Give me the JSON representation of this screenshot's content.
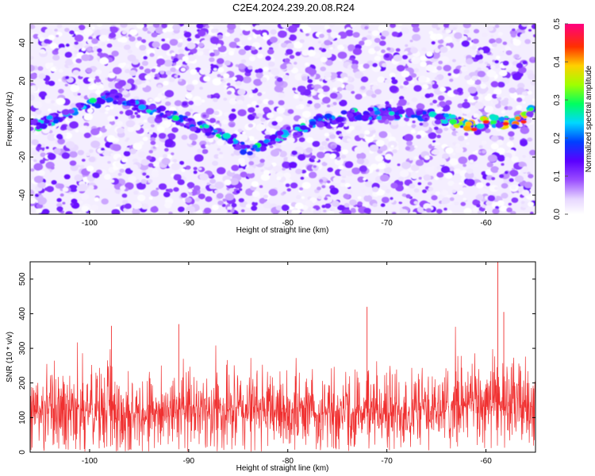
{
  "title": "C2E4.2024.239.20.08.R24",
  "colors": {
    "snr_line": "#f03030",
    "background": "#ffffff",
    "axis": "#000000"
  },
  "chart_data": [
    {
      "type": "heatmap",
      "name": "spectrogram",
      "xlabel": "Height of straight line (km)",
      "ylabel": "Frequency (Hz)",
      "xlim": [
        -106.0,
        -55.0
      ],
      "ylim": [
        -50,
        50
      ],
      "x_ticks": [
        -100,
        -90,
        -80,
        -70,
        -60
      ],
      "y_ticks": [
        -40,
        -20,
        0,
        20,
        40
      ],
      "grid": false,
      "colorbar": {
        "label": "Normalized spectral amplitude",
        "range": [
          0.0,
          0.5
        ],
        "ticks": [
          0.0,
          0.1,
          0.2,
          0.3,
          0.4,
          0.5
        ],
        "colormap": "white-purple-blue-cyan-green-yellow-red-magenta"
      },
      "ridge": {
        "description_points": [
          {
            "x": -105,
            "y": -3
          },
          {
            "x": -98,
            "y": 12
          },
          {
            "x": -95,
            "y": 7
          },
          {
            "x": -92,
            "y": 2
          },
          {
            "x": -88,
            "y": -6
          },
          {
            "x": -86,
            "y": -10
          },
          {
            "x": -84,
            "y": -17
          },
          {
            "x": -82,
            "y": -12
          },
          {
            "x": -79,
            "y": -6
          },
          {
            "x": -77,
            "y": -1
          },
          {
            "x": -74,
            "y": 2
          },
          {
            "x": -70,
            "y": 3
          },
          {
            "x": -67,
            "y": 3
          },
          {
            "x": -62,
            "y": -2
          },
          {
            "x": -61,
            "y": -6
          },
          {
            "x": -60,
            "y": -1
          },
          {
            "x": -57,
            "y": -2
          },
          {
            "x": -55,
            "y": 6
          }
        ],
        "peak_amplitude": 0.45
      }
    },
    {
      "type": "line",
      "name": "snr",
      "xlabel": "Height of straight line (km)",
      "ylabel": "SNR (10 * v/v)",
      "xlim": [
        -106.0,
        -55.0
      ],
      "ylim": [
        0,
        550
      ],
      "x_ticks": [
        -100,
        -90,
        -80,
        -70,
        -60
      ],
      "y_ticks": [
        0,
        100,
        200,
        300,
        400,
        500
      ],
      "grid": false,
      "series": [
        {
          "color": "#f03030",
          "baseline": 120,
          "typical_peak": 280,
          "notable_peaks": [
            {
              "x": -97.8,
              "y": 365
            },
            {
              "x": -91.0,
              "y": 370
            },
            {
              "x": -72.0,
              "y": 420
            },
            {
              "x": -58.8,
              "y": 550
            },
            {
              "x": -58.2,
              "y": 405
            }
          ]
        }
      ]
    }
  ]
}
